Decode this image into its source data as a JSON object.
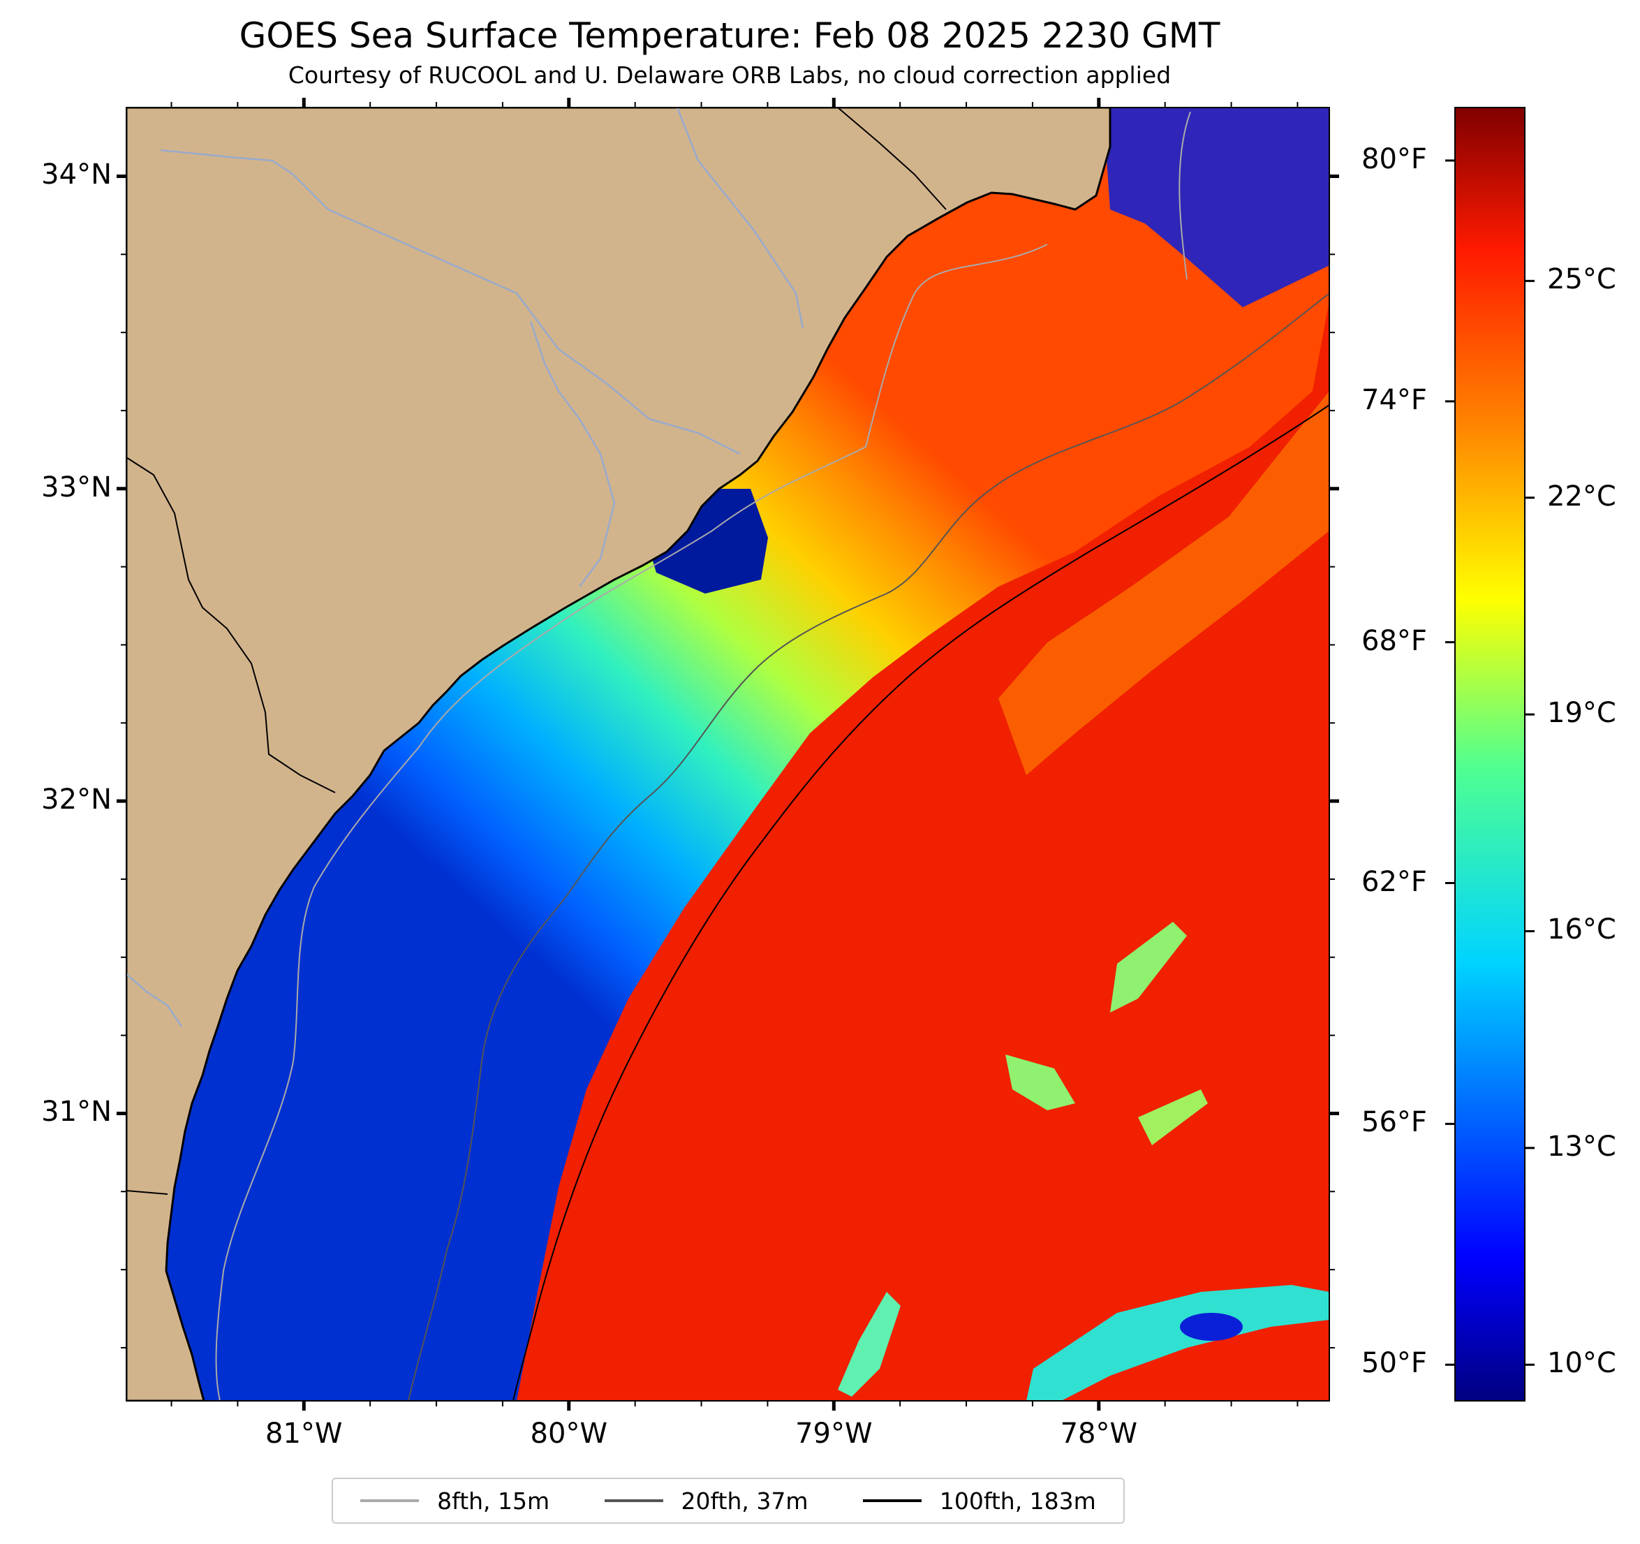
{
  "title": "GOES Sea Surface Temperature: Feb 08 2025 2230 GMT",
  "subtitle": "Courtesy of RUCOOL and U. Delaware ORB Labs, no cloud correction applied",
  "colors": {
    "land": "#d2b48c",
    "ocean_warm": "#f02000",
    "coast": "#000000"
  },
  "map": {
    "lon_range": [
      -81.67,
      -77.13
    ],
    "lat_range": [
      30.08,
      34.22
    ],
    "lon_labels": [
      {
        "value": -81,
        "text": "81°W"
      },
      {
        "value": -80,
        "text": "80°W"
      },
      {
        "value": -79,
        "text": "79°W"
      },
      {
        "value": -78,
        "text": "78°W"
      }
    ],
    "lat_labels": [
      {
        "value": 34,
        "text": "34°N"
      },
      {
        "value": 33,
        "text": "33°N"
      },
      {
        "value": 32,
        "text": "32°N"
      },
      {
        "value": 31,
        "text": "31°N"
      }
    ]
  },
  "colorbar": {
    "range_c": [
      9.5,
      27.4
    ],
    "fahrenheit_labels": [
      {
        "value": 80,
        "text": "80°F"
      },
      {
        "value": 74,
        "text": "74°F"
      },
      {
        "value": 68,
        "text": "68°F"
      },
      {
        "value": 62,
        "text": "62°F"
      },
      {
        "value": 56,
        "text": "56°F"
      },
      {
        "value": 50,
        "text": "50°F"
      }
    ],
    "celsius_labels": [
      {
        "value": 25,
        "text": "25°C"
      },
      {
        "value": 22,
        "text": "22°C"
      },
      {
        "value": 19,
        "text": "19°C"
      },
      {
        "value": 16,
        "text": "16°C"
      },
      {
        "value": 13,
        "text": "13°C"
      },
      {
        "value": 10,
        "text": "10°C"
      }
    ]
  },
  "legend": {
    "items": [
      {
        "label": "8fth, 15m",
        "color": "#aaaaaa"
      },
      {
        "label": "20fth, 37m",
        "color": "#555555"
      },
      {
        "label": "100fth, 183m",
        "color": "#000000"
      }
    ]
  }
}
